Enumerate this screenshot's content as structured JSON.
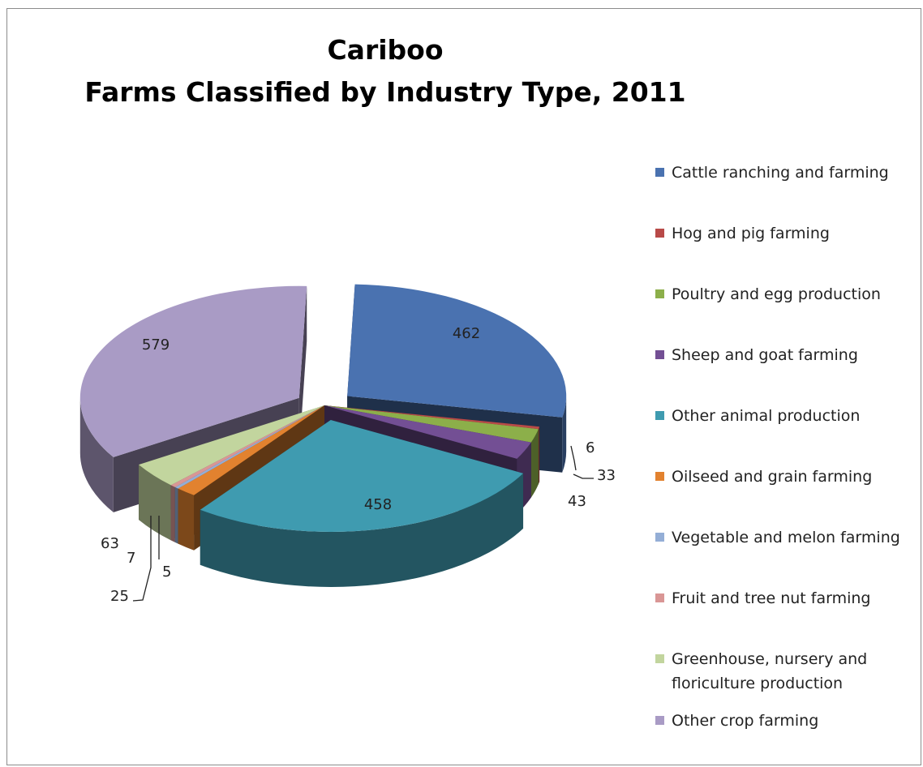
{
  "chart_data": {
    "type": "pie",
    "title": "Cariboo",
    "subtitle": "Farms Classified by Industry Type, 2011",
    "legend_position": "right",
    "exploded": true,
    "three_d": true,
    "slices": [
      {
        "name": "Cattle ranching and farming",
        "value": 462,
        "color": "#4a72b0",
        "label": "462"
      },
      {
        "name": "Hog and pig farming",
        "value": 6,
        "color": "#b84a48",
        "label": "6"
      },
      {
        "name": "Poultry and egg production",
        "value": 33,
        "color": "#8caf4a",
        "label": "33"
      },
      {
        "name": "Sheep and goat farming",
        "value": 43,
        "color": "#734f94",
        "label": "43"
      },
      {
        "name": "Other animal production",
        "value": 458,
        "color": "#3f9bb0",
        "label": "458"
      },
      {
        "name": "Oilseed and grain farming",
        "value": 25,
        "color": "#e2822f",
        "label": "25"
      },
      {
        "name": "Vegetable and melon farming",
        "value": 5,
        "color": "#94aed6",
        "label": "5"
      },
      {
        "name": "Fruit and tree nut farming",
        "value": 7,
        "color": "#d99695",
        "label": "7"
      },
      {
        "name": "Greenhouse, nursery and floriculture production",
        "value": 63,
        "color": "#c2d59e",
        "label": "63",
        "legend_lines": [
          "Greenhouse, nursery and",
          "floriculture production"
        ]
      },
      {
        "name": "Other crop farming",
        "value": 579,
        "color": "#a99bc5",
        "label": "579"
      }
    ]
  }
}
